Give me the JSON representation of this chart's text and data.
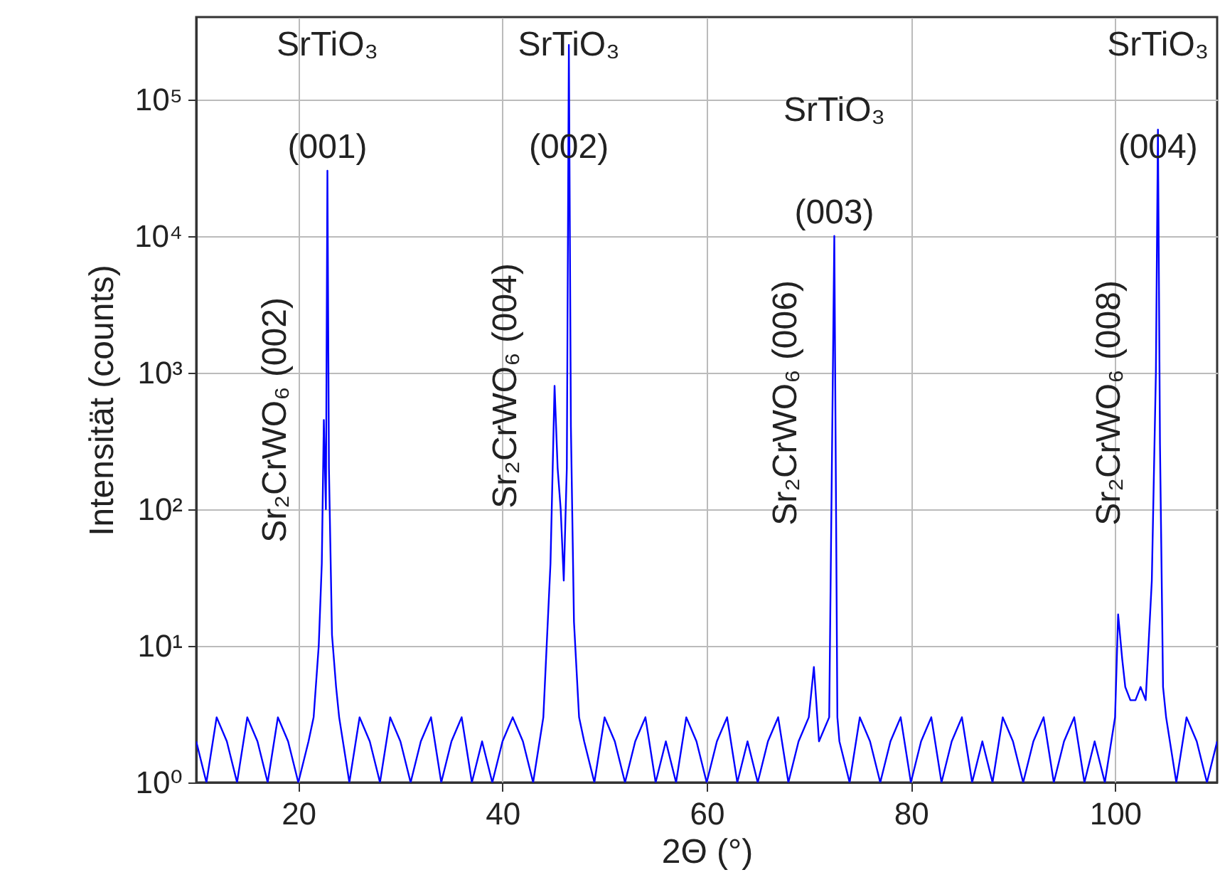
{
  "chart_data": {
    "type": "line",
    "xlabel": "2Θ (°)",
    "ylabel": "Intensität (counts)",
    "log": "y",
    "grid": true,
    "xlim": [
      10,
      110
    ],
    "xticks": [
      20,
      40,
      60,
      80,
      100
    ],
    "ylim": [
      1,
      400000
    ],
    "yticks": [
      {
        "value": 1,
        "label": "10⁰"
      },
      {
        "value": 10,
        "label": "10¹"
      },
      {
        "value": 100,
        "label": "10²"
      },
      {
        "value": 1000,
        "label": "10³"
      },
      {
        "value": 10000,
        "label": "10⁴"
      },
      {
        "value": 100000,
        "label": "10⁵"
      }
    ],
    "x": [
      10,
      11,
      12,
      13,
      14,
      15,
      16,
      17,
      18,
      19,
      20,
      21,
      21.5,
      22,
      22.3,
      22.5,
      22.7,
      22.85,
      23,
      23.3,
      23.7,
      24,
      25,
      26,
      27,
      28,
      29,
      30,
      31,
      32,
      33,
      34,
      35,
      36,
      37,
      38,
      39,
      40,
      41,
      42,
      43,
      44,
      44.7,
      45.1,
      45.4,
      45.7,
      46,
      46.3,
      46.5,
      46.7,
      47,
      47.5,
      48,
      49,
      50,
      51,
      52,
      53,
      54,
      55,
      56,
      57,
      58,
      59,
      60,
      61,
      62,
      63,
      64,
      65,
      66,
      67,
      68,
      69,
      70,
      70.5,
      71,
      72,
      72.5,
      72.8,
      73,
      74,
      75,
      76,
      77,
      78,
      79,
      80,
      81,
      82,
      83,
      84,
      85,
      86,
      87,
      88,
      89,
      90,
      91,
      92,
      93,
      94,
      95,
      96,
      97,
      98,
      99,
      100,
      100.3,
      100.7,
      101,
      101.5,
      102,
      102.5,
      103,
      103.6,
      104,
      104.2,
      104.4,
      104.7,
      105,
      106,
      107,
      108,
      109,
      110
    ],
    "series": [
      {
        "color": "#0000ff",
        "values": [
          2,
          1,
          3,
          2,
          1,
          3,
          2,
          1,
          3,
          2,
          1,
          2,
          3,
          10,
          40,
          450,
          100,
          30000,
          200,
          12,
          5,
          3,
          1,
          3,
          2,
          1,
          3,
          2,
          1,
          2,
          3,
          1,
          2,
          3,
          1,
          2,
          1,
          2,
          3,
          2,
          1,
          3,
          40,
          800,
          200,
          100,
          30,
          200,
          250000,
          400,
          15,
          3,
          2,
          1,
          3,
          2,
          1,
          2,
          3,
          1,
          2,
          1,
          3,
          2,
          1,
          2,
          3,
          1,
          2,
          1,
          2,
          3,
          1,
          2,
          3,
          7,
          2,
          3,
          10000,
          3,
          2,
          1,
          3,
          2,
          1,
          2,
          3,
          1,
          2,
          3,
          1,
          2,
          3,
          1,
          2,
          1,
          3,
          2,
          1,
          2,
          3,
          1,
          2,
          3,
          1,
          2,
          1,
          3,
          17,
          8,
          5,
          4,
          4,
          5,
          4,
          30,
          1000,
          60000,
          300,
          5,
          3,
          1,
          3,
          2,
          1,
          2
        ]
      }
    ],
    "annotations": [
      "SrTiO₃",
      {
        "text": "(001)",
        "x": 22.85,
        "y": 30000
      },
      "SrTiO₃",
      {
        "text": "(002)",
        "x": 46.5,
        "y": 30000
      },
      "SrTiO₃",
      {
        "text": "(003)",
        "x": 72.5,
        "y": 10000
      },
      "SrTiO₃",
      {
        "text": "(004)",
        "x": 104.2,
        "y": 30000
      },
      {
        "text": "Sr₂CrWO₆ (002)",
        "x": 22.5,
        "y": 450
      },
      {
        "text": "Sr₂CrWO₆ (004)",
        "x": 45.1,
        "y": 800
      },
      {
        "text": "Sr₂CrWO₆ (006)",
        "x": 72.5,
        "y": 600
      },
      {
        "text": "Sr₂CrWO₆ (008)",
        "x": 104.2,
        "y": 600
      }
    ]
  }
}
